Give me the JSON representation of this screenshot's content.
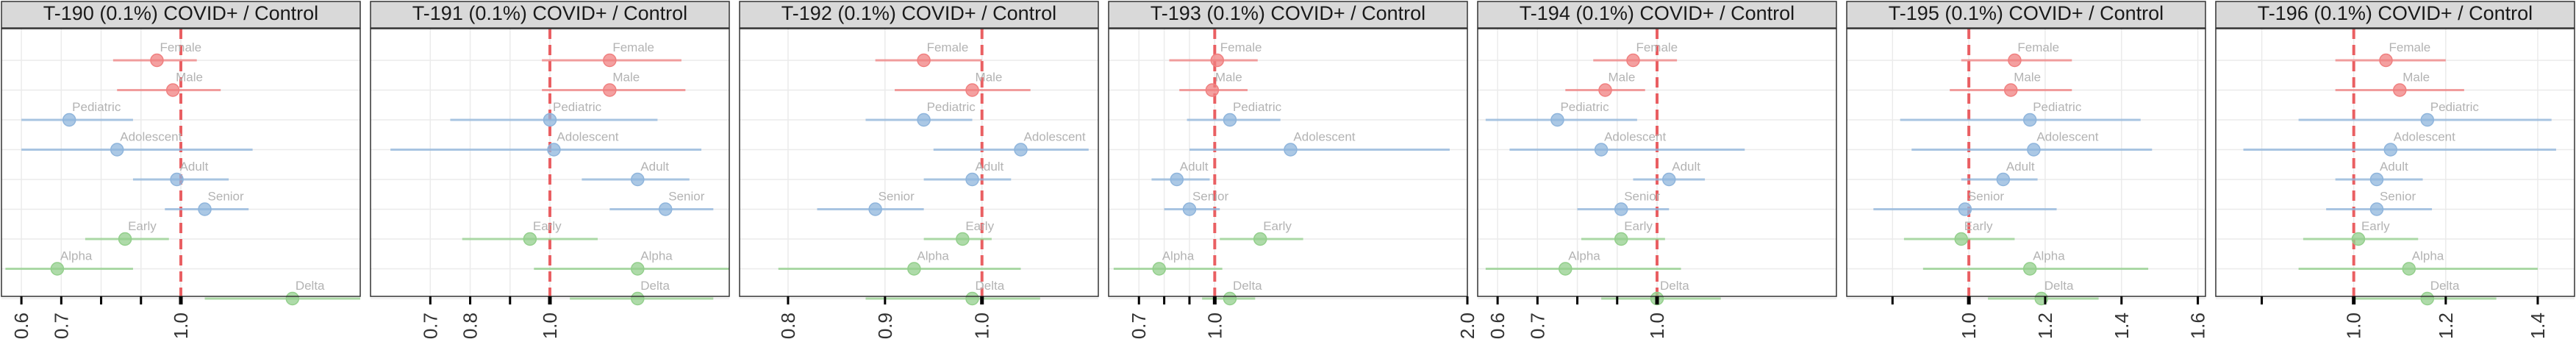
{
  "figure": {
    "row_labels": [
      "Female",
      "Male",
      "Pediatric",
      "Adolescent",
      "Adult",
      "Senior",
      "Early",
      "Alpha",
      "Delta"
    ],
    "row_groups": [
      "sex",
      "sex",
      "age",
      "age",
      "age",
      "age",
      "variant",
      "variant",
      "variant"
    ],
    "colors": {
      "sex": "#f08080",
      "age": "#8fb5dc",
      "variant": "#93cf8c",
      "ref_line": "#e8464a",
      "strip_bg": "#d9d9d9",
      "panel_border": "#333333",
      "grid": "#ebebeb",
      "label_text": "#b3b3b3",
      "axis_text": "#333333"
    }
  },
  "chart_data": [
    {
      "type": "forest",
      "title": "T-190 (0.1%) COVID+ / Control",
      "xlim": [
        0.55,
        1.45
      ],
      "ticks": [
        {
          "v": 0.6,
          "label": "0.6"
        },
        {
          "v": 0.7,
          "label": "0.7"
        },
        {
          "v": 0.8,
          "label": ""
        },
        {
          "v": 0.9,
          "label": ""
        },
        {
          "v": 1.0,
          "label": "1.0"
        }
      ],
      "ref": 1.0,
      "points": [
        {
          "label": "Female",
          "est": 0.94,
          "lo": 0.83,
          "hi": 1.04
        },
        {
          "label": "Male",
          "est": 0.98,
          "lo": 0.84,
          "hi": 1.1
        },
        {
          "label": "Pediatric",
          "est": 0.72,
          "lo": 0.6,
          "hi": 0.88
        },
        {
          "label": "Adolescent",
          "est": 0.84,
          "lo": 0.6,
          "hi": 1.18
        },
        {
          "label": "Adult",
          "est": 0.99,
          "lo": 0.88,
          "hi": 1.12
        },
        {
          "label": "Senior",
          "est": 1.06,
          "lo": 0.96,
          "hi": 1.17
        },
        {
          "label": "Early",
          "est": 0.86,
          "lo": 0.76,
          "hi": 0.97
        },
        {
          "label": "Alpha",
          "est": 0.69,
          "lo": 0.56,
          "hi": 0.88
        },
        {
          "label": "Delta",
          "est": 1.28,
          "lo": 1.06,
          "hi": 1.45
        }
      ]
    },
    {
      "type": "forest",
      "title": "T-191 (0.1%) COVID+ / Control",
      "xlim": [
        0.55,
        1.45
      ],
      "ticks": [
        {
          "v": 0.7,
          "label": "0.7"
        },
        {
          "v": 0.8,
          "label": "0.8"
        },
        {
          "v": 0.9,
          "label": ""
        },
        {
          "v": 1.0,
          "label": "1.0"
        }
      ],
      "ref": 1.0,
      "points": [
        {
          "label": "Female",
          "est": 1.15,
          "lo": 0.98,
          "hi": 1.33
        },
        {
          "label": "Male",
          "est": 1.15,
          "lo": 0.98,
          "hi": 1.34
        },
        {
          "label": "Pediatric",
          "est": 1.0,
          "lo": 0.75,
          "hi": 1.27
        },
        {
          "label": "Adolescent",
          "est": 1.01,
          "lo": 0.6,
          "hi": 1.38
        },
        {
          "label": "Adult",
          "est": 1.22,
          "lo": 1.08,
          "hi": 1.35
        },
        {
          "label": "Senior",
          "est": 1.29,
          "lo": 1.15,
          "hi": 1.41
        },
        {
          "label": "Early",
          "est": 0.95,
          "lo": 0.78,
          "hi": 1.12
        },
        {
          "label": "Alpha",
          "est": 1.22,
          "lo": 0.96,
          "hi": 1.45
        },
        {
          "label": "Delta",
          "est": 1.22,
          "lo": 1.05,
          "hi": 1.41
        }
      ]
    },
    {
      "type": "forest",
      "title": "T-192 (0.1%) COVID+ / Control",
      "xlim": [
        0.75,
        1.12
      ],
      "ticks": [
        {
          "v": 0.8,
          "label": "0.8"
        },
        {
          "v": 0.9,
          "label": "0.9"
        },
        {
          "v": 1.0,
          "label": "1.0"
        }
      ],
      "ref": 1.0,
      "points": [
        {
          "label": "Female",
          "est": 0.94,
          "lo": 0.89,
          "hi": 1.0
        },
        {
          "label": "Male",
          "est": 0.99,
          "lo": 0.91,
          "hi": 1.05
        },
        {
          "label": "Pediatric",
          "est": 0.94,
          "lo": 0.88,
          "hi": 0.99
        },
        {
          "label": "Adolescent",
          "est": 1.04,
          "lo": 0.95,
          "hi": 1.11
        },
        {
          "label": "Adult",
          "est": 0.99,
          "lo": 0.94,
          "hi": 1.03
        },
        {
          "label": "Senior",
          "est": 0.89,
          "lo": 0.83,
          "hi": 0.94
        },
        {
          "label": "Early",
          "est": 0.98,
          "lo": 0.94,
          "hi": 1.01
        },
        {
          "label": "Alpha",
          "est": 0.93,
          "lo": 0.79,
          "hi": 1.04
        },
        {
          "label": "Delta",
          "est": 0.99,
          "lo": 0.88,
          "hi": 1.06
        }
      ]
    },
    {
      "type": "forest",
      "title": "T-193 (0.1%) COVID+ / Control",
      "xlim": [
        0.58,
        2.0
      ],
      "ticks": [
        {
          "v": 0.7,
          "label": "0.7"
        },
        {
          "v": 0.8,
          "label": ""
        },
        {
          "v": 0.9,
          "label": ""
        },
        {
          "v": 1.0,
          "label": "1.0"
        },
        {
          "v": 2.0,
          "label": "2.0"
        }
      ],
      "ref": 1.0,
      "points": [
        {
          "label": "Female",
          "est": 1.01,
          "lo": 0.82,
          "hi": 1.17
        },
        {
          "label": "Male",
          "est": 0.99,
          "lo": 0.86,
          "hi": 1.13
        },
        {
          "label": "Pediatric",
          "est": 1.06,
          "lo": 0.89,
          "hi": 1.26
        },
        {
          "label": "Adolescent",
          "est": 1.3,
          "lo": 0.9,
          "hi": 1.93
        },
        {
          "label": "Adult",
          "est": 0.85,
          "lo": 0.75,
          "hi": 0.98
        },
        {
          "label": "Senior",
          "est": 0.9,
          "lo": 0.8,
          "hi": 1.02
        },
        {
          "label": "Early",
          "est": 1.18,
          "lo": 1.02,
          "hi": 1.35
        },
        {
          "label": "Alpha",
          "est": 0.78,
          "lo": 0.6,
          "hi": 1.03
        },
        {
          "label": "Delta",
          "est": 1.06,
          "lo": 0.95,
          "hi": 1.16
        }
      ]
    },
    {
      "type": "forest",
      "title": "T-194 (0.1%) COVID+ / Control",
      "xlim": [
        0.55,
        1.45
      ],
      "ticks": [
        {
          "v": 0.6,
          "label": "0.6"
        },
        {
          "v": 0.7,
          "label": "0.7"
        },
        {
          "v": 0.8,
          "label": ""
        },
        {
          "v": 0.9,
          "label": ""
        },
        {
          "v": 1.0,
          "label": "1.0"
        }
      ],
      "ref": 1.0,
      "points": [
        {
          "label": "Female",
          "est": 0.94,
          "lo": 0.84,
          "hi": 1.05
        },
        {
          "label": "Male",
          "est": 0.87,
          "lo": 0.77,
          "hi": 0.97
        },
        {
          "label": "Pediatric",
          "est": 0.75,
          "lo": 0.57,
          "hi": 0.95
        },
        {
          "label": "Adolescent",
          "est": 0.86,
          "lo": 0.63,
          "hi": 1.22
        },
        {
          "label": "Adult",
          "est": 1.03,
          "lo": 0.94,
          "hi": 1.12
        },
        {
          "label": "Senior",
          "est": 0.91,
          "lo": 0.8,
          "hi": 1.03
        },
        {
          "label": "Early",
          "est": 0.91,
          "lo": 0.81,
          "hi": 1.02
        },
        {
          "label": "Alpha",
          "est": 0.77,
          "lo": 0.57,
          "hi": 1.06
        },
        {
          "label": "Delta",
          "est": 1.0,
          "lo": 0.86,
          "hi": 1.16
        }
      ]
    },
    {
      "type": "forest",
      "title": "T-195 (0.1%) COVID+ / Control",
      "xlim": [
        0.68,
        1.62
      ],
      "ticks": [
        {
          "v": 0.8,
          "label": ""
        },
        {
          "v": 1.0,
          "label": "1.0"
        },
        {
          "v": 1.2,
          "label": "1.2"
        },
        {
          "v": 1.4,
          "label": "1.4"
        },
        {
          "v": 1.6,
          "label": "1.6"
        }
      ],
      "ref": 1.0,
      "points": [
        {
          "label": "Female",
          "est": 1.12,
          "lo": 0.98,
          "hi": 1.27
        },
        {
          "label": "Male",
          "est": 1.11,
          "lo": 0.95,
          "hi": 1.27
        },
        {
          "label": "Pediatric",
          "est": 1.16,
          "lo": 0.82,
          "hi": 1.45
        },
        {
          "label": "Adolescent",
          "est": 1.17,
          "lo": 0.85,
          "hi": 1.48
        },
        {
          "label": "Adult",
          "est": 1.09,
          "lo": 0.98,
          "hi": 1.18
        },
        {
          "label": "Senior",
          "est": 0.99,
          "lo": 0.75,
          "hi": 1.23
        },
        {
          "label": "Early",
          "est": 0.98,
          "lo": 0.83,
          "hi": 1.12
        },
        {
          "label": "Alpha",
          "est": 1.16,
          "lo": 0.88,
          "hi": 1.47
        },
        {
          "label": "Delta",
          "est": 1.19,
          "lo": 1.05,
          "hi": 1.34
        }
      ]
    },
    {
      "type": "forest",
      "title": "T-196 (0.1%) COVID+ / Control",
      "xlim": [
        0.7,
        1.48
      ],
      "ticks": [
        {
          "v": 0.8,
          "label": ""
        },
        {
          "v": 1.0,
          "label": "1.0"
        },
        {
          "v": 1.2,
          "label": "1.2"
        },
        {
          "v": 1.4,
          "label": "1.4"
        }
      ],
      "ref": 1.0,
      "points": [
        {
          "label": "Female",
          "est": 1.07,
          "lo": 0.96,
          "hi": 1.2
        },
        {
          "label": "Male",
          "est": 1.1,
          "lo": 0.96,
          "hi": 1.24
        },
        {
          "label": "Pediatric",
          "est": 1.16,
          "lo": 0.88,
          "hi": 1.43
        },
        {
          "label": "Adolescent",
          "est": 1.08,
          "lo": 0.76,
          "hi": 1.44
        },
        {
          "label": "Adult",
          "est": 1.05,
          "lo": 0.96,
          "hi": 1.15
        },
        {
          "label": "Senior",
          "est": 1.05,
          "lo": 0.94,
          "hi": 1.17
        },
        {
          "label": "Early",
          "est": 1.01,
          "lo": 0.89,
          "hi": 1.14
        },
        {
          "label": "Alpha",
          "est": 1.12,
          "lo": 0.88,
          "hi": 1.4
        },
        {
          "label": "Delta",
          "est": 1.16,
          "lo": 1.0,
          "hi": 1.31
        }
      ]
    }
  ]
}
